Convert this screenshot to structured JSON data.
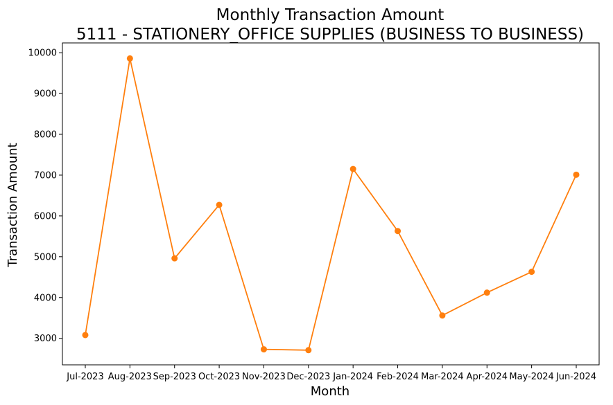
{
  "chart_data": {
    "type": "line",
    "title": "Monthly Transaction Amount",
    "subtitle": "5111 - STATIONERY_OFFICE SUPPLIES (BUSINESS TO BUSINESS)",
    "xlabel": "Month",
    "ylabel": "Transaction Amount",
    "categories": [
      "Jul-2023",
      "Aug-2023",
      "Sep-2023",
      "Oct-2023",
      "Nov-2023",
      "Dec-2023",
      "Jan-2024",
      "Feb-2024",
      "Mar-2024",
      "Apr-2024",
      "May-2024",
      "Jun-2024"
    ],
    "values": [
      3080,
      9860,
      4960,
      6270,
      2730,
      2710,
      7150,
      5630,
      3560,
      4120,
      4630,
      7010
    ],
    "ylim": [
      2350,
      10240
    ],
    "yticks": [
      3000,
      4000,
      5000,
      6000,
      7000,
      8000,
      9000,
      10000
    ],
    "color": "#ff7f0e",
    "grid": false,
    "legend": "none"
  }
}
